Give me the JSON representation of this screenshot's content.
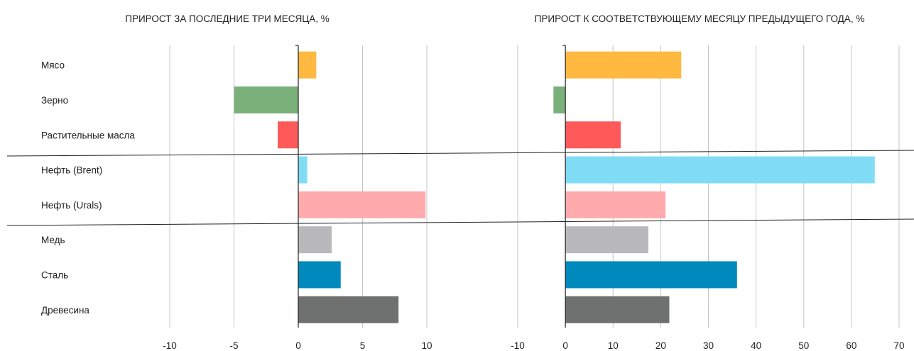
{
  "chart_data": [
    {
      "type": "bar",
      "orientation": "horizontal",
      "title": "ПРИРОСТ ЗА ПОСЛЕДНИЕ ТРИ МЕСЯЦА, %",
      "categories": [
        "Мясо",
        "Зерно",
        "Растительные масла",
        "Нефть (Brent)",
        "Нефть (Urals)",
        "Медь",
        "Сталь",
        "Древесина"
      ],
      "values": [
        1.4,
        -5.0,
        -1.6,
        0.7,
        9.9,
        2.6,
        3.3,
        7.8
      ],
      "xlim": [
        -10,
        10
      ],
      "ticks": [
        -10,
        -5,
        0,
        5,
        10
      ],
      "grid": true
    },
    {
      "type": "bar",
      "orientation": "horizontal",
      "title": "ПРИРОСТ К СООТВЕТСТВУЮЩЕМУ МЕСЯЦУ ПРЕДЫДУЩЕГО ГОДА, %",
      "categories": [
        "Мясо",
        "Зерно",
        "Растительные масла",
        "Нефть (Brent)",
        "Нефть (Urals)",
        "Медь",
        "Сталь",
        "Древесина"
      ],
      "values": [
        24.3,
        -2.5,
        11.6,
        64.9,
        21.0,
        17.4,
        36.0,
        21.8
      ],
      "xlim": [
        -10,
        70
      ],
      "ticks": [
        -10,
        0,
        10,
        20,
        30,
        40,
        50,
        60,
        70
      ],
      "grid": true
    }
  ],
  "colors": [
    "#ffb840",
    "#7ab07a",
    "#ff5a5a",
    "#80dcf5",
    "#ffabae",
    "#b9b9bb",
    "#0089bc",
    "#6f7170"
  ]
}
